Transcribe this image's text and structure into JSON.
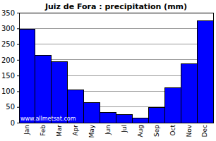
{
  "chart_data": {
    "type": "bar",
    "title": "Juiz de Fora : precipitation (mm)",
    "categories": [
      "Jan",
      "Feb",
      "Mar",
      "Apr",
      "May",
      "Jun",
      "Jul",
      "Aug",
      "Sep",
      "Oct",
      "Nov",
      "Dec"
    ],
    "values": [
      298,
      215,
      195,
      105,
      65,
      32,
      25,
      15,
      48,
      112,
      188,
      325
    ],
    "color": "#0000ff",
    "ylim": [
      0,
      350
    ],
    "yticks": [
      0,
      50,
      100,
      150,
      200,
      250,
      300,
      350
    ],
    "grid": true,
    "annotations": [
      "www.allmetsat.com"
    ]
  }
}
